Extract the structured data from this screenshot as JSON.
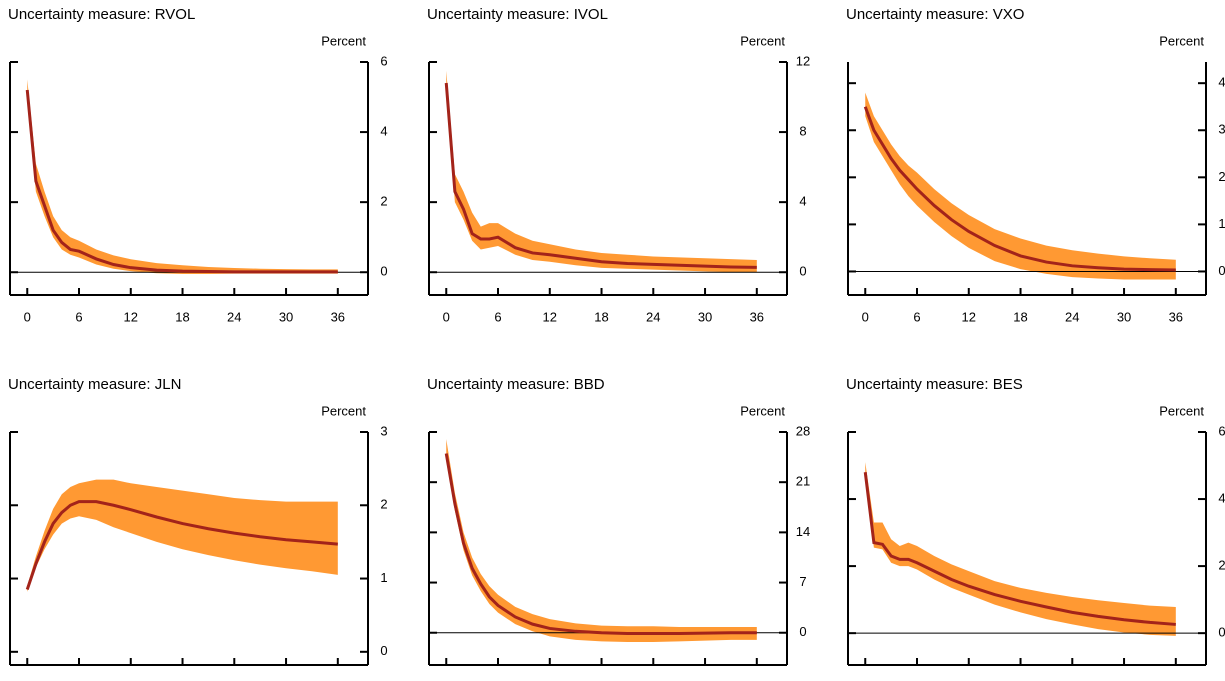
{
  "chart_data": [
    {
      "type": "band-line",
      "title": "Uncertainty measure: RVOL",
      "y_label": "Percent",
      "line_color": "#a3231a",
      "band_color": "#ff9933",
      "zero_line": true,
      "x": [
        0,
        1,
        2,
        3,
        4,
        5,
        6,
        8,
        10,
        12,
        15,
        18,
        21,
        24,
        27,
        30,
        33,
        36
      ],
      "values": [
        5.2,
        2.6,
        1.9,
        1.2,
        0.85,
        0.65,
        0.6,
        0.38,
        0.22,
        0.13,
        0.06,
        0.03,
        0.02,
        0.01,
        0.01,
        0.01,
        0.01,
        0.01
      ],
      "lower": [
        4.9,
        2.3,
        1.6,
        1.0,
        0.65,
        0.5,
        0.42,
        0.22,
        0.1,
        0.03,
        -0.03,
        -0.05,
        -0.05,
        -0.04,
        -0.04,
        -0.04,
        -0.04,
        -0.04
      ],
      "upper": [
        5.5,
        3.1,
        2.3,
        1.6,
        1.2,
        1.0,
        0.9,
        0.65,
        0.48,
        0.37,
        0.26,
        0.2,
        0.15,
        0.12,
        0.1,
        0.09,
        0.08,
        0.08
      ],
      "xlim": [
        -2,
        39.5
      ],
      "xticks": [
        0,
        6,
        12,
        18,
        24,
        30,
        36
      ],
      "ylim": [
        -0.65,
        6
      ],
      "yticks": [
        0,
        2,
        4,
        6
      ]
    },
    {
      "type": "band-line",
      "title": "Uncertainty measure: IVOL",
      "y_label": "Percent",
      "line_color": "#a3231a",
      "band_color": "#ff9933",
      "zero_line": true,
      "x": [
        0,
        1,
        2,
        3,
        4,
        5,
        6,
        8,
        10,
        12,
        15,
        18,
        21,
        24,
        27,
        30,
        33,
        36
      ],
      "values": [
        10.8,
        4.6,
        3.6,
        2.2,
        1.9,
        1.9,
        2.0,
        1.4,
        1.1,
        1.0,
        0.8,
        0.6,
        0.5,
        0.45,
        0.4,
        0.35,
        0.3,
        0.28
      ],
      "lower": [
        10.3,
        4.0,
        3.0,
        1.8,
        1.3,
        1.4,
        1.5,
        1.0,
        0.7,
        0.6,
        0.4,
        0.25,
        0.2,
        0.15,
        0.1,
        0.05,
        0.0,
        0.0
      ],
      "upper": [
        11.5,
        5.6,
        4.6,
        3.4,
        2.6,
        2.8,
        2.8,
        2.2,
        1.8,
        1.6,
        1.3,
        1.1,
        1.0,
        0.9,
        0.85,
        0.8,
        0.75,
        0.7
      ],
      "xlim": [
        -2,
        39.5
      ],
      "xticks": [
        0,
        6,
        12,
        18,
        24,
        30,
        36
      ],
      "ylim": [
        -1.3,
        12
      ],
      "yticks": [
        0,
        4,
        8,
        12
      ]
    },
    {
      "type": "band-line",
      "title": "Uncertainty measure: VXO",
      "y_label": "Percent",
      "line_color": "#a3231a",
      "band_color": "#ff9933",
      "zero_line": true,
      "x": [
        0,
        1,
        2,
        3,
        4,
        5,
        6,
        8,
        10,
        12,
        15,
        18,
        21,
        24,
        27,
        30,
        33,
        36
      ],
      "values": [
        3.5,
        3.0,
        2.7,
        2.4,
        2.15,
        1.95,
        1.75,
        1.4,
        1.1,
        0.85,
        0.55,
        0.33,
        0.2,
        0.12,
        0.08,
        0.05,
        0.04,
        0.03
      ],
      "lower": [
        3.3,
        2.75,
        2.45,
        2.15,
        1.85,
        1.6,
        1.4,
        1.05,
        0.75,
        0.5,
        0.22,
        0.05,
        -0.05,
        -0.12,
        -0.15,
        -0.17,
        -0.17,
        -0.17
      ],
      "upper": [
        3.8,
        3.3,
        3.0,
        2.7,
        2.45,
        2.25,
        2.1,
        1.75,
        1.45,
        1.2,
        0.9,
        0.7,
        0.55,
        0.45,
        0.38,
        0.32,
        0.28,
        0.25
      ],
      "xlim": [
        -2,
        39.5
      ],
      "xticks": [
        0,
        6,
        12,
        18,
        24,
        30,
        36
      ],
      "ylim": [
        -0.5,
        4.45
      ],
      "yticks": [
        0,
        1,
        2,
        3,
        4
      ]
    },
    {
      "type": "band-line",
      "title": "Uncertainty measure: JLN",
      "y_label": "Percent",
      "line_color": "#a3231a",
      "band_color": "#ff9933",
      "zero_line": false,
      "x": [
        0,
        1,
        2,
        3,
        4,
        5,
        6,
        8,
        10,
        12,
        15,
        18,
        21,
        24,
        27,
        30,
        33,
        36
      ],
      "values": [
        0.85,
        1.2,
        1.5,
        1.75,
        1.9,
        2.0,
        2.05,
        2.05,
        2.0,
        1.94,
        1.84,
        1.75,
        1.68,
        1.62,
        1.57,
        1.53,
        1.5,
        1.47
      ],
      "lower": [
        0.82,
        1.15,
        1.4,
        1.6,
        1.75,
        1.82,
        1.85,
        1.8,
        1.7,
        1.62,
        1.5,
        1.4,
        1.32,
        1.25,
        1.19,
        1.14,
        1.1,
        1.05
      ],
      "upper": [
        0.9,
        1.3,
        1.65,
        1.95,
        2.15,
        2.25,
        2.3,
        2.35,
        2.35,
        2.3,
        2.25,
        2.2,
        2.15,
        2.1,
        2.07,
        2.05,
        2.05,
        2.05
      ],
      "xlim": [
        -2,
        39.5
      ],
      "xticks": [
        0,
        6,
        12,
        18,
        24,
        30,
        36
      ],
      "ylim": [
        -0.18,
        3
      ],
      "yticks": [
        0,
        1,
        2,
        3
      ]
    },
    {
      "type": "band-line",
      "title": "Uncertainty measure: BBD",
      "y_label": "Percent",
      "line_color": "#a3231a",
      "band_color": "#ff9933",
      "zero_line": true,
      "x": [
        0,
        1,
        2,
        3,
        4,
        5,
        6,
        8,
        10,
        12,
        15,
        18,
        21,
        24,
        27,
        30,
        33,
        36
      ],
      "values": [
        25,
        18,
        12.5,
        9,
        6.8,
        5,
        3.8,
        2.2,
        1.2,
        0.6,
        0.2,
        0,
        -0.1,
        -0.1,
        -0.1,
        -0.05,
        0,
        0
      ],
      "lower": [
        24,
        17,
        11.5,
        8,
        5.8,
        4,
        2.8,
        1.2,
        0.2,
        -0.5,
        -1,
        -1.2,
        -1.3,
        -1.3,
        -1.2,
        -1.1,
        -1,
        -1
      ],
      "upper": [
        27,
        19.5,
        14,
        10.5,
        8.2,
        6.5,
        5.3,
        3.6,
        2.6,
        1.9,
        1.3,
        1,
        0.9,
        0.9,
        0.8,
        0.8,
        0.8,
        0.8
      ],
      "xlim": [
        -2,
        39.5
      ],
      "xticks": [
        0,
        6,
        12,
        18,
        24,
        30,
        36
      ],
      "ylim": [
        -4.5,
        28
      ],
      "yticks": [
        0,
        7,
        14,
        21,
        28
      ]
    },
    {
      "type": "band-line",
      "title": "Uncertainty measure: BES",
      "y_label": "Percent",
      "line_color": "#a3231a",
      "band_color": "#ff9933",
      "zero_line": true,
      "x": [
        0,
        1,
        2,
        3,
        4,
        5,
        6,
        8,
        10,
        12,
        15,
        18,
        21,
        24,
        27,
        30,
        33,
        36
      ],
      "values": [
        4.8,
        2.7,
        2.65,
        2.3,
        2.2,
        2.2,
        2.1,
        1.85,
        1.6,
        1.4,
        1.15,
        0.95,
        0.78,
        0.62,
        0.5,
        0.4,
        0.32,
        0.26
      ],
      "lower": [
        4.6,
        2.55,
        2.5,
        2.1,
        2.0,
        2.0,
        1.9,
        1.6,
        1.35,
        1.15,
        0.85,
        0.62,
        0.42,
        0.26,
        0.12,
        0.02,
        -0.05,
        -0.08
      ],
      "upper": [
        5.1,
        3.3,
        3.3,
        2.8,
        2.6,
        2.7,
        2.6,
        2.3,
        2.05,
        1.85,
        1.55,
        1.35,
        1.2,
        1.08,
        0.98,
        0.9,
        0.82,
        0.78
      ],
      "xlim": [
        -2,
        39.5
      ],
      "xticks": [
        0,
        6,
        12,
        18,
        24,
        30,
        36
      ],
      "ylim": [
        -0.95,
        6
      ],
      "yticks": [
        0,
        2,
        4,
        6
      ]
    }
  ]
}
